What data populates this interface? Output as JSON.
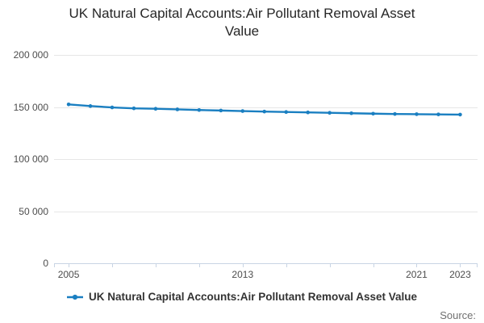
{
  "title": {
    "text": "UK Natural Capital Accounts:Air Pollutant Removal Asset Value",
    "lines": [
      "UK Natural Capital Accounts:Air Pollutant Removal Asset",
      "Value"
    ]
  },
  "legend": {
    "label": "UK Natural Capital Accounts:Air Pollutant Removal Asset Value"
  },
  "source": {
    "label": "Source:"
  },
  "colors": {
    "line": "#1a7fc1",
    "grid": "#e6e6e6",
    "axis": "#c8d4e4",
    "tick_text": "#4d4d4d",
    "title_text": "#262626",
    "legend_text": "#333333",
    "source_text": "#707070"
  },
  "chart_data": {
    "type": "line",
    "title": "UK Natural Capital Accounts:Air Pollutant Removal Asset Value",
    "xlabel": "",
    "ylabel": "",
    "x": [
      2005,
      2006,
      2007,
      2008,
      2009,
      2010,
      2011,
      2012,
      2013,
      2014,
      2015,
      2016,
      2017,
      2018,
      2019,
      2020,
      2021,
      2022,
      2023
    ],
    "series": [
      {
        "name": "UK Natural Capital Accounts:Air Pollutant Removal Asset Value",
        "values": [
          152500,
          150900,
          149600,
          148700,
          148300,
          147700,
          147100,
          146600,
          146100,
          145600,
          145200,
          144800,
          144400,
          144000,
          143600,
          143300,
          143100,
          142900,
          142700
        ]
      }
    ],
    "ylim": [
      0,
      200000
    ],
    "xlim": [
      2004.33,
      2023.8
    ],
    "y_ticks": [
      {
        "value": 0,
        "label": "0"
      },
      {
        "value": 50000,
        "label": "50 000"
      },
      {
        "value": 100000,
        "label": "100 000"
      },
      {
        "value": 150000,
        "label": "150 000"
      },
      {
        "value": 200000,
        "label": "200 000"
      }
    ],
    "x_ticks": [
      2005,
      2007,
      2009,
      2011,
      2013,
      2015,
      2017,
      2019,
      2021,
      2023
    ],
    "x_tick_labels": [
      2005,
      2013,
      2021,
      2023
    ],
    "edge_ticks": true,
    "grid": "horizontal",
    "legend_position": "bottom",
    "marker": "dot"
  }
}
